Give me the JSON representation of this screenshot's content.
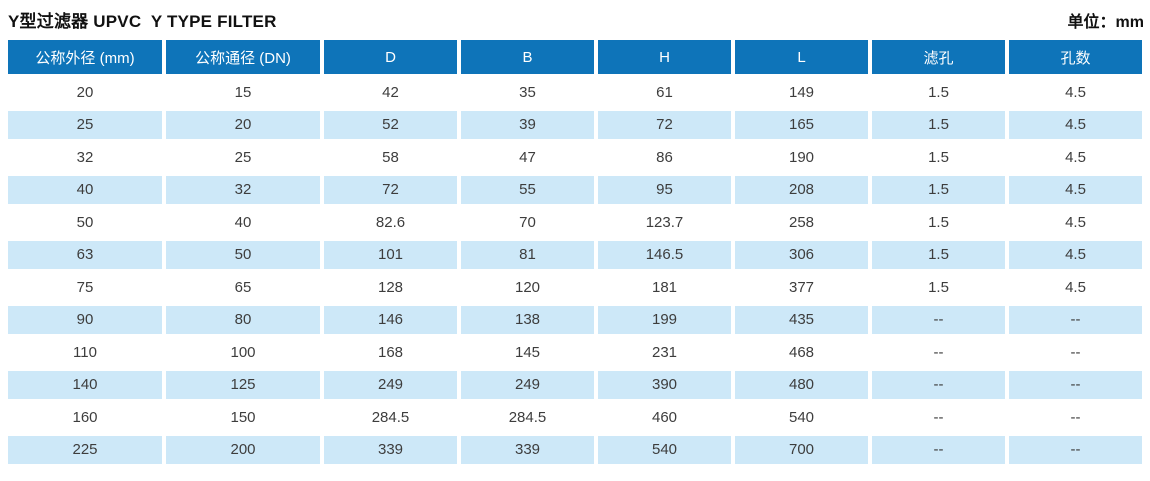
{
  "page": {
    "title": "Y型过滤器 UPVC  Y TYPE FILTER",
    "unit_label": "单位：mm"
  },
  "table": {
    "headers": [
      "公称外径 (mm)",
      "公称通径 (DN)",
      "D",
      "B",
      "H",
      "L",
      "滤孔",
      "孔数"
    ],
    "rows": [
      [
        "20",
        "15",
        "42",
        "35",
        "61",
        "149",
        "1.5",
        "4.5"
      ],
      [
        "25",
        "20",
        "52",
        "39",
        "72",
        "165",
        "1.5",
        "4.5"
      ],
      [
        "32",
        "25",
        "58",
        "47",
        "86",
        "190",
        "1.5",
        "4.5"
      ],
      [
        "40",
        "32",
        "72",
        "55",
        "95",
        "208",
        "1.5",
        "4.5"
      ],
      [
        "50",
        "40",
        "82.6",
        "70",
        "123.7",
        "258",
        "1.5",
        "4.5"
      ],
      [
        "63",
        "50",
        "101",
        "81",
        "146.5",
        "306",
        "1.5",
        "4.5"
      ],
      [
        "75",
        "65",
        "128",
        "120",
        "181",
        "377",
        "1.5",
        "4.5"
      ],
      [
        "90",
        "80",
        "146",
        "138",
        "199",
        "435",
        "--",
        "--"
      ],
      [
        "110",
        "100",
        "168",
        "145",
        "231",
        "468",
        "--",
        "--"
      ],
      [
        "140",
        "125",
        "249",
        "249",
        "390",
        "480",
        "--",
        "--"
      ],
      [
        "160",
        "150",
        "284.5",
        "284.5",
        "460",
        "540",
        "--",
        "--"
      ],
      [
        "225",
        "200",
        "339",
        "339",
        "540",
        "700",
        "--",
        "--"
      ]
    ]
  },
  "colors": {
    "header_bg": "#0e74b9",
    "row_alt_bg": "#cde8f8",
    "text": "#3d3d3d"
  }
}
